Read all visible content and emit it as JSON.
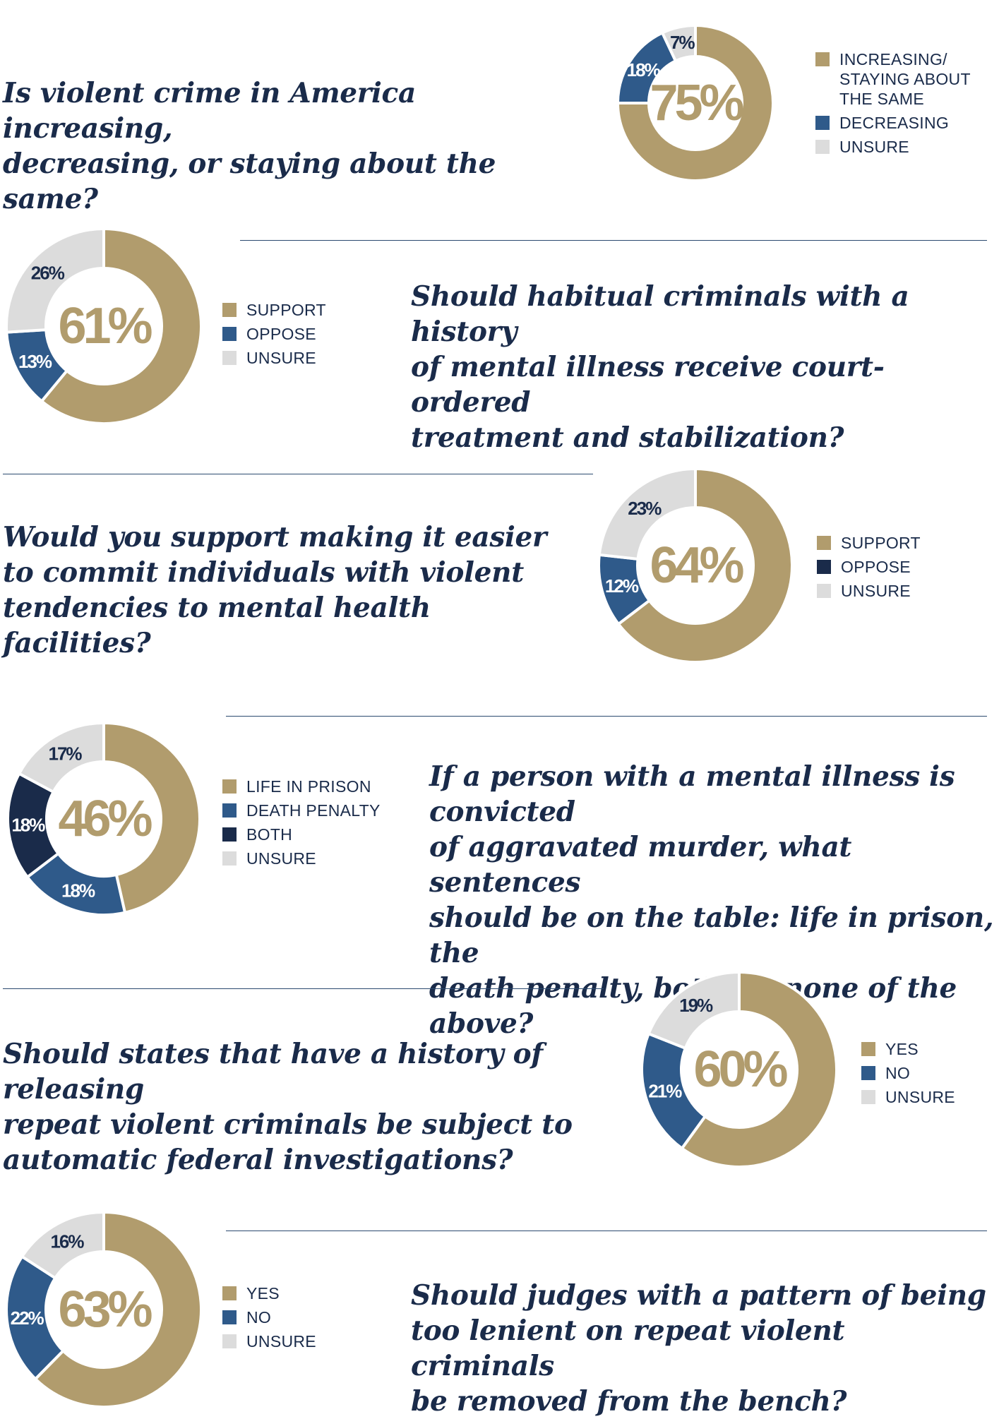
{
  "colors": {
    "tan": "#b19c6d",
    "blue": "#2f5a8a",
    "navy": "#1a2b4a",
    "gray": "#dcdcdc"
  },
  "chart_data": [
    {
      "type": "pie",
      "question": "Is violent crime in America increasing,\ndecreasing, or staying about the same?",
      "center_label": "75%",
      "series": [
        {
          "name": "INCREASING/\nSTAYING ABOUT\nTHE SAME",
          "value": 75,
          "label": "",
          "color": "tan"
        },
        {
          "name": "DECREASING",
          "value": 18,
          "label": "18%",
          "color": "blue"
        },
        {
          "name": "UNSURE",
          "value": 7,
          "label": "7%",
          "color": "gray"
        }
      ]
    },
    {
      "type": "pie",
      "question": "Should habitual criminals with a history\nof mental illness receive court-ordered\ntreatment and stabilization?",
      "center_label": "61%",
      "series": [
        {
          "name": "SUPPORT",
          "value": 61,
          "label": "",
          "color": "tan"
        },
        {
          "name": "OPPOSE",
          "value": 13,
          "label": "13%",
          "color": "blue"
        },
        {
          "name": "UNSURE",
          "value": 26,
          "label": "26%",
          "color": "gray"
        }
      ]
    },
    {
      "type": "pie",
      "question": "Would you support making it easier\nto commit individuals with violent\ntendencies to mental health facilities?",
      "center_label": "64%",
      "series": [
        {
          "name": "SUPPORT",
          "value": 64,
          "label": "",
          "color": "tan"
        },
        {
          "name": "OPPOSE",
          "value": 12,
          "label": "12%",
          "color": "blue"
        },
        {
          "name": "UNSURE",
          "value": 23,
          "label": "23%",
          "color": "gray"
        }
      ],
      "legend_colors": [
        "tan",
        "navy",
        "gray"
      ]
    },
    {
      "type": "pie",
      "question": "If a person with a mental illness is convicted\nof aggravated murder, what sentences\nshould be on the table: life in prison, the\ndeath penalty, both, or none of the above?",
      "center_label": "46%",
      "series": [
        {
          "name": "LIFE IN PRISON",
          "value": 46,
          "label": "",
          "color": "tan"
        },
        {
          "name": "DEATH PENALTY",
          "value": 18,
          "label": "18%",
          "color": "blue"
        },
        {
          "name": "BOTH",
          "value": 18,
          "label": "18%",
          "color": "navy"
        },
        {
          "name": "UNSURE",
          "value": 17,
          "label": "17%",
          "color": "gray"
        }
      ]
    },
    {
      "type": "pie",
      "question": "Should states that have a history of releasing\nrepeat violent criminals be subject to\nautomatic federal investigations?",
      "center_label": "60%",
      "series": [
        {
          "name": "YES",
          "value": 60,
          "label": "",
          "color": "tan"
        },
        {
          "name": "NO",
          "value": 21,
          "label": "21%",
          "color": "blue"
        },
        {
          "name": "UNSURE",
          "value": 19,
          "label": "19%",
          "color": "gray"
        }
      ]
    },
    {
      "type": "pie",
      "question": "Should judges with a pattern of being\ntoo lenient on repeat violent criminals\nbe removed from the bench?",
      "center_label": "63%",
      "series": [
        {
          "name": "YES",
          "value": 63,
          "label": "",
          "color": "tan"
        },
        {
          "name": "NO",
          "value": 22,
          "label": "22%",
          "color": "blue"
        },
        {
          "name": "UNSURE",
          "value": 16,
          "label": "16%",
          "color": "gray"
        }
      ]
    }
  ]
}
